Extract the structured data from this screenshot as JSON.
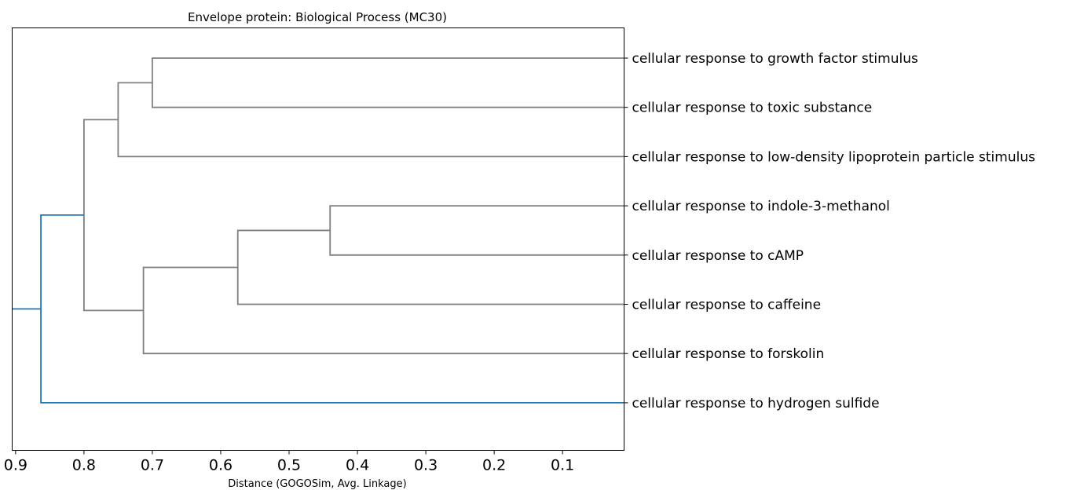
{
  "chart_data": {
    "type": "dendrogram",
    "title": "Envelope protein: Biological Process (MC30)",
    "xlabel": "Distance (GOGOSim, Avg. Linkage)",
    "ylabel": "",
    "xlim": [
      0.905,
      0.01
    ],
    "x_ticks": [
      0.9,
      0.8,
      0.7,
      0.6,
      0.5,
      0.4,
      0.3,
      0.2,
      0.1
    ],
    "x_tick_labels": [
      "0.9",
      "0.8",
      "0.7",
      "0.6",
      "0.5",
      "0.4",
      "0.3",
      "0.2",
      "0.1"
    ],
    "grid": false,
    "leaves": [
      "cellular response to growth factor stimulus",
      "cellular response to toxic substance",
      "cellular response to low-density lipoprotein particle stimulus",
      "cellular response to indole-3-methanol",
      "cellular response to cAMP",
      "cellular response to caffeine",
      "cellular response to forskolin",
      "cellular response to hydrogen sulfide"
    ],
    "merges": [
      {
        "id": "A",
        "children": [
          "L0",
          "L1"
        ],
        "distance": 0.7,
        "color": "#808080"
      },
      {
        "id": "B",
        "children": [
          "A",
          "L2"
        ],
        "distance": 0.75,
        "color": "#808080"
      },
      {
        "id": "C",
        "children": [
          "L3",
          "L4"
        ],
        "distance": 0.44,
        "color": "#808080"
      },
      {
        "id": "D",
        "children": [
          "C",
          "L5"
        ],
        "distance": 0.575,
        "color": "#808080"
      },
      {
        "id": "E",
        "children": [
          "D",
          "L6"
        ],
        "distance": 0.713,
        "color": "#808080"
      },
      {
        "id": "F",
        "children": [
          "B",
          "E"
        ],
        "distance": 0.8,
        "color": "#808080"
      },
      {
        "id": "G",
        "children": [
          "F",
          "L7"
        ],
        "distance": 0.863,
        "color": "#1f77b4"
      }
    ],
    "root_color": "#1f77b4"
  }
}
